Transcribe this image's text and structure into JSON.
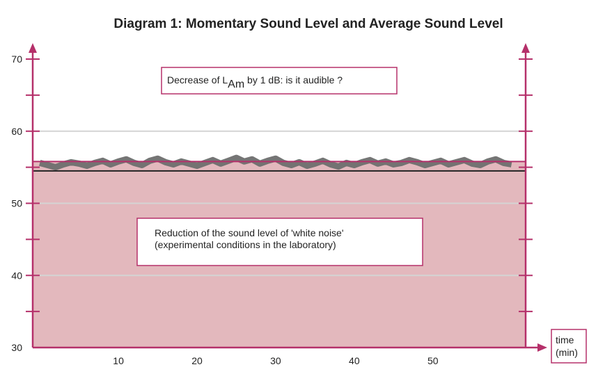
{
  "chart_data": {
    "type": "area-line",
    "title": "Diagram 1: Momentary Sound Level  and  Average Sound Level",
    "xlabel": [
      "time",
      "(min)"
    ],
    "xlim": [
      -0.9,
      61.8
    ],
    "xticks": [
      10,
      20,
      30,
      40,
      50
    ],
    "ylim": [
      30,
      70
    ],
    "yticks": [
      30,
      40,
      50,
      60,
      70
    ],
    "yticks_minor": [
      35,
      45,
      55,
      65
    ],
    "grid": true,
    "levels": [
      {
        "value": 55.8,
        "color": "#b5306a",
        "fill": "#e3b8bd"
      },
      {
        "value": 54.5,
        "color": "#222222"
      }
    ],
    "x": [
      0,
      1,
      2,
      3,
      4,
      5,
      6,
      7,
      8,
      9,
      10,
      11,
      12,
      13,
      14,
      15,
      16,
      17,
      18,
      19,
      20,
      21,
      22,
      23,
      24,
      25,
      26,
      27,
      28,
      29,
      30,
      31,
      32,
      33,
      34,
      35,
      36,
      37,
      38,
      39,
      40,
      41,
      42,
      43,
      44,
      45,
      46,
      47,
      48,
      49,
      50,
      51,
      52,
      53,
      54,
      55,
      56,
      57,
      58,
      59,
      60
    ],
    "series": [
      {
        "color": "#6e6e6e",
        "values": [
          55.6,
          55.3,
          55.0,
          55.4,
          55.7,
          55.5,
          55.2,
          55.6,
          55.9,
          55.4,
          55.8,
          56.1,
          55.6,
          55.3,
          55.9,
          56.2,
          55.7,
          55.4,
          55.8,
          55.5,
          55.2,
          55.6,
          56.0,
          55.5,
          55.9,
          56.3,
          55.8,
          56.1,
          55.5,
          55.9,
          56.2,
          55.6,
          55.3,
          55.7,
          55.2,
          55.5,
          55.9,
          55.4,
          55.1,
          55.6,
          55.3,
          55.7,
          56.0,
          55.5,
          55.8,
          55.4,
          55.6,
          56.0,
          55.7,
          55.3,
          55.6,
          55.9,
          55.4,
          55.7,
          56.0,
          55.5,
          55.3,
          55.8,
          56.1,
          55.6,
          55.4
        ]
      }
    ],
    "annotations": [
      {
        "parts": [
          "Decrease of L",
          "Am",
          " by 1 dB: is it audible ?"
        ]
      },
      {
        "lines": [
          "Reduction of the sound level of 'white noise'",
          "(experimental conditions in the laboratory)"
        ]
      }
    ]
  }
}
